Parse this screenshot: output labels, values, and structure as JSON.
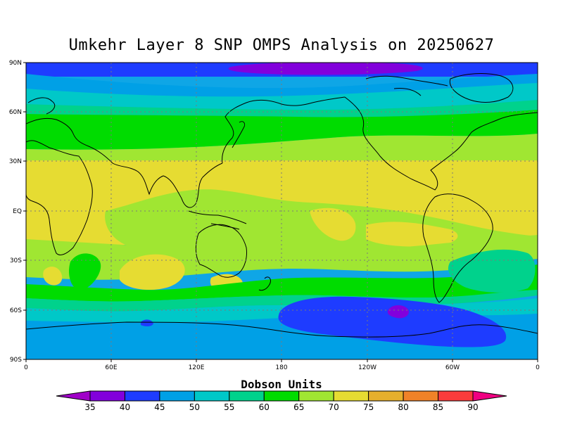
{
  "title": "Umkehr Layer 8 SNP OMPS Analysis on 20250627",
  "lat_labels": [
    "90N",
    "60N",
    "30N",
    "EQ",
    "30S",
    "60S",
    "90S"
  ],
  "lon_labels": [
    "0",
    "60E",
    "120E",
    "180",
    "120W",
    "60W",
    "0"
  ],
  "colorbar": {
    "label": "Dobson Units",
    "levels": [
      "35",
      "40",
      "45",
      "50",
      "55",
      "60",
      "65",
      "70",
      "75",
      "80",
      "85",
      "90"
    ],
    "colors": [
      "#a000c8",
      "#8200dc",
      "#1e3cff",
      "#00a0e6",
      "#00c8c8",
      "#00d28c",
      "#00dc00",
      "#a0e632",
      "#e6dc32",
      "#e6af2d",
      "#f08228",
      "#fa3c3c",
      "#f00082"
    ]
  },
  "map": {
    "projection": "cylindrical equidistant",
    "lon_range": [
      0,
      360
    ],
    "lat_range": [
      -90,
      90
    ],
    "grid": "dotted"
  }
}
